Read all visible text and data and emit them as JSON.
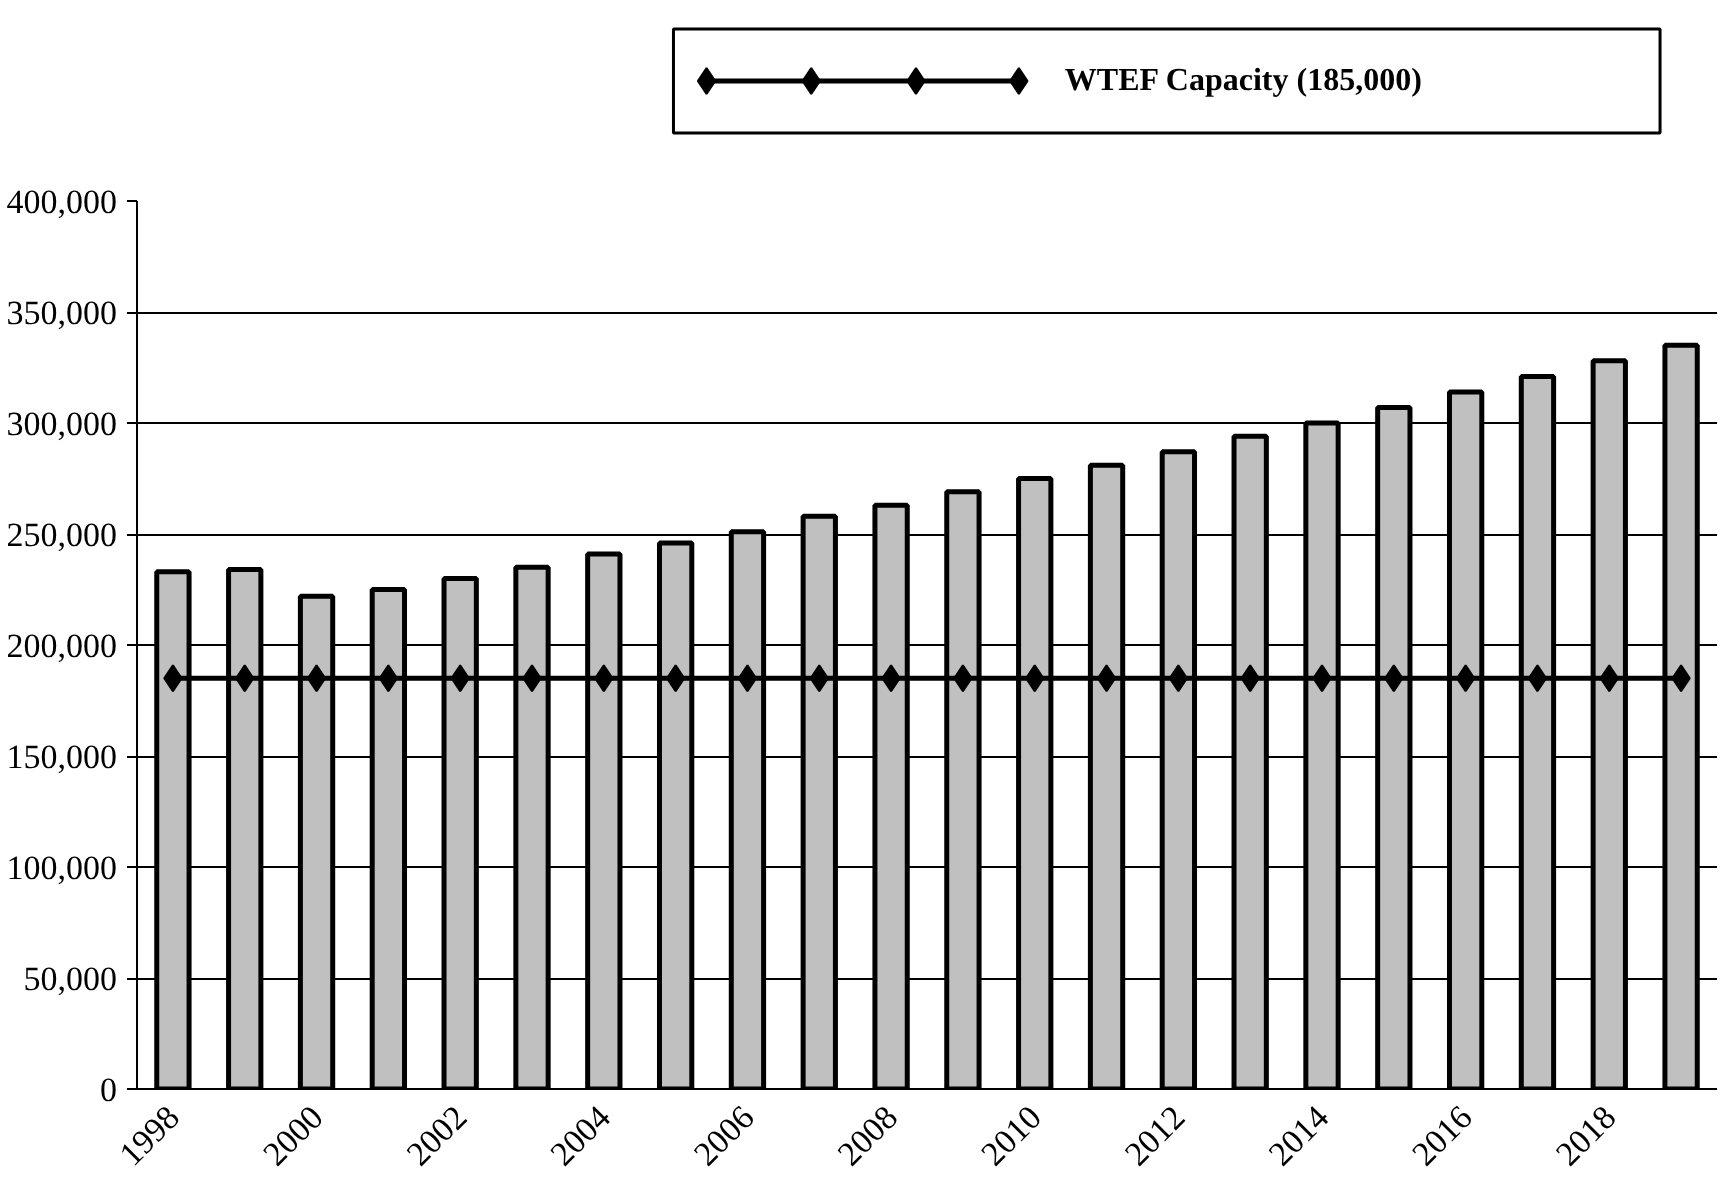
{
  "chart_data": {
    "type": "bar",
    "categories": [
      "1998",
      null,
      "2000",
      null,
      "2002",
      null,
      "2004",
      null,
      "2006",
      null,
      "2008",
      null,
      "2010",
      null,
      "2012",
      null,
      "2014",
      null,
      "2016",
      null,
      "2018",
      null
    ],
    "series": [
      {
        "color": "#c0c0c0",
        "values": [
          233000,
          234000,
          222000,
          225000,
          230000,
          235000,
          241000,
          246000,
          251000,
          258000,
          263000,
          269000,
          275000,
          281000,
          287000,
          294000,
          300000,
          307000,
          314000,
          321000,
          328000,
          335000
        ]
      },
      {
        "type": "line",
        "name": "WTEF Capacity (185,000)",
        "color": "#000000",
        "marker": "diamond",
        "values": [
          185000,
          185000,
          185000,
          185000,
          185000,
          185000,
          185000,
          185000,
          185000,
          185000,
          185000,
          185000,
          185000,
          185000,
          185000,
          185000,
          185000,
          185000,
          185000,
          185000,
          185000,
          185000
        ]
      }
    ],
    "ylim": [
      0,
      400000
    ],
    "yticks": [
      {
        "value": 0,
        "label": "0"
      },
      {
        "value": 50000,
        "label": "50,000"
      },
      {
        "value": 100000,
        "label": "100,000"
      },
      {
        "value": 150000,
        "label": "150,000"
      },
      {
        "value": 200000,
        "label": "200,000"
      },
      {
        "value": 250000,
        "label": "250,000"
      },
      {
        "value": 300000,
        "label": "300,000"
      },
      {
        "value": 350000,
        "label": "350,000"
      },
      {
        "value": 400000,
        "label": "400,000"
      }
    ],
    "grid": "y",
    "legend": "top"
  }
}
